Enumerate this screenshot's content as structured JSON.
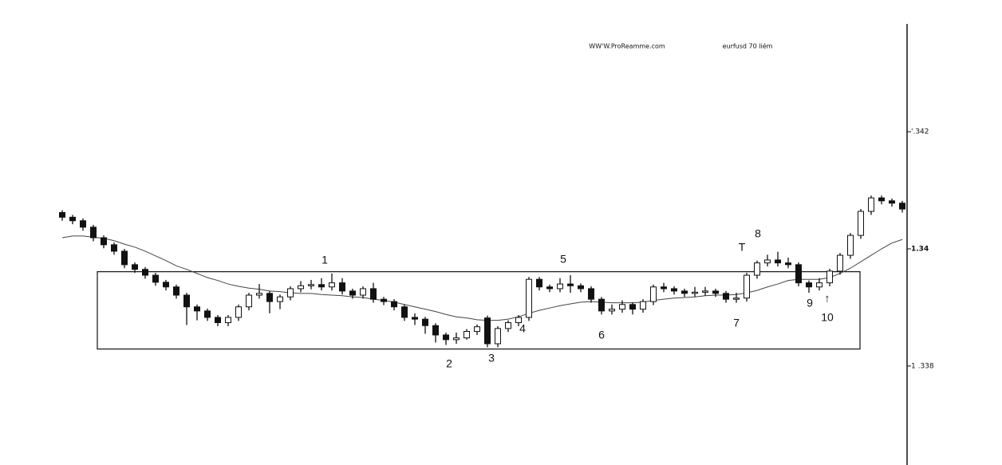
{
  "chart_data": {
    "type": "candlestick",
    "header": [
      "WW'W.ProReamme.com",
      "eurfusd 70 liém"
    ],
    "annotations": [
      "1",
      "2",
      "3",
      "4",
      "5",
      "6",
      "7",
      "T",
      "8",
      "9",
      "10",
      "↑"
    ],
    "ylim": [
      1.33631,
      1.34384
    ],
    "yticks": [
      {
        "value": 1.342,
        "label": "'.342"
      },
      1.34,
      {
        "value": 1.338,
        "label": "1 .338"
      }
    ],
    "range_box": [
      1.33829,
      1.33961
    ],
    "open": [
      1.34062,
      1.34054,
      1.34048,
      1.34037,
      1.34019,
      1.34007,
      1.33996,
      1.33973,
      1.33965,
      1.33955,
      1.33943,
      1.33935,
      1.33921,
      1.33901,
      1.33894,
      1.33883,
      1.33874,
      1.33883,
      1.33901,
      1.33921,
      1.33924,
      1.3391,
      1.33918,
      1.33932,
      1.33937,
      1.33939,
      1.33935,
      1.33942,
      1.33928,
      1.33921,
      1.33932,
      1.33914,
      1.3391,
      1.33901,
      1.33883,
      1.3388,
      1.33869,
      1.33853,
      1.33845,
      1.33848,
      1.33859,
      1.33882,
      1.33838,
      1.33864,
      1.33874,
      1.33883,
      1.33948,
      1.33935,
      1.33932,
      1.3394,
      1.33937,
      1.33932,
      1.33914,
      1.33894,
      1.33897,
      1.33905,
      1.33897,
      1.3391,
      1.33935,
      1.33932,
      1.33928,
      1.33924,
      1.33926,
      1.33928,
      1.33924,
      1.33914,
      1.33916,
      1.33955,
      1.33976,
      1.33981,
      1.33976,
      1.33973,
      1.33942,
      1.33935,
      1.33942,
      1.33962,
      1.33989,
      1.34023,
      1.34064,
      1.34087,
      1.34082,
      1.34078
    ],
    "high": [
      1.34066,
      1.34058,
      1.34052,
      1.34041,
      1.34023,
      1.34011,
      1.34,
      1.33977,
      1.33969,
      1.33959,
      1.33947,
      1.33939,
      1.33925,
      1.33905,
      1.33898,
      1.33887,
      1.33887,
      1.33905,
      1.33925,
      1.3394,
      1.33928,
      1.33922,
      1.33936,
      1.33945,
      1.33947,
      1.3395,
      1.33958,
      1.3395,
      1.33932,
      1.33936,
      1.33942,
      1.33918,
      1.33914,
      1.33905,
      1.3389,
      1.33884,
      1.33873,
      1.33857,
      1.33857,
      1.33863,
      1.33871,
      1.33886,
      1.33868,
      1.33878,
      1.33887,
      1.33952,
      1.33952,
      1.33939,
      1.3395,
      1.33955,
      1.33941,
      1.33936,
      1.33918,
      1.33905,
      1.33912,
      1.33909,
      1.33914,
      1.33939,
      1.33942,
      1.33936,
      1.33932,
      1.33935,
      1.33935,
      1.33932,
      1.33928,
      1.33925,
      1.33959,
      1.3398,
      1.3399,
      1.33995,
      1.33985,
      1.33977,
      1.33946,
      1.3395,
      1.33966,
      1.33993,
      1.34027,
      1.34068,
      1.34091,
      1.34091,
      1.34086,
      1.34082
    ],
    "low": [
      1.34048,
      1.34042,
      1.34031,
      1.34013,
      1.34001,
      1.3399,
      1.33967,
      1.33959,
      1.33949,
      1.33937,
      1.33929,
      1.33915,
      1.3387,
      1.33878,
      1.33877,
      1.33868,
      1.33868,
      1.33877,
      1.33895,
      1.33915,
      1.3389,
      1.33897,
      1.33912,
      1.33926,
      1.33931,
      1.33929,
      1.33929,
      1.33922,
      1.33915,
      1.33915,
      1.33908,
      1.33904,
      1.33895,
      1.33877,
      1.3387,
      1.33855,
      1.3384,
      1.33836,
      1.33838,
      1.33845,
      1.33853,
      1.33832,
      1.33832,
      1.33858,
      1.33868,
      1.33877,
      1.33929,
      1.33926,
      1.33926,
      1.33925,
      1.33926,
      1.33908,
      1.33888,
      1.33888,
      1.33891,
      1.33888,
      1.33891,
      1.33904,
      1.33926,
      1.33922,
      1.33918,
      1.33918,
      1.3392,
      1.33918,
      1.33908,
      1.33908,
      1.3391,
      1.33949,
      1.3397,
      1.3397,
      1.33967,
      1.33936,
      1.33925,
      1.33929,
      1.33936,
      1.33956,
      1.33983,
      1.34017,
      1.34058,
      1.34076,
      1.34072,
      1.34062
    ],
    "close": [
      1.34054,
      1.34048,
      1.34037,
      1.34019,
      1.34007,
      1.33996,
      1.33973,
      1.33965,
      1.33955,
      1.33943,
      1.33935,
      1.33921,
      1.33901,
      1.33894,
      1.33883,
      1.33874,
      1.33883,
      1.33901,
      1.33921,
      1.33924,
      1.3391,
      1.33918,
      1.33932,
      1.33937,
      1.33939,
      1.33935,
      1.33942,
      1.33928,
      1.33921,
      1.33932,
      1.33914,
      1.3391,
      1.33901,
      1.33883,
      1.3388,
      1.33869,
      1.33853,
      1.33845,
      1.33848,
      1.33859,
      1.33867,
      1.33838,
      1.33864,
      1.33874,
      1.33883,
      1.33948,
      1.33935,
      1.33932,
      1.3394,
      1.33937,
      1.33932,
      1.33914,
      1.33894,
      1.33897,
      1.33905,
      1.33897,
      1.3391,
      1.33935,
      1.33932,
      1.33928,
      1.33924,
      1.33926,
      1.33928,
      1.33924,
      1.33914,
      1.33916,
      1.33955,
      1.33976,
      1.33981,
      1.33976,
      1.33973,
      1.33942,
      1.33935,
      1.33942,
      1.33962,
      1.33989,
      1.34023,
      1.34064,
      1.34087,
      1.34082,
      1.34078,
      1.34068
    ],
    "moving_average": [
      1.34019,
      1.34022,
      1.34022,
      1.3402,
      1.34018,
      1.34014,
      1.34008,
      1.34003,
      1.33996,
      1.33988,
      1.3398,
      1.33971,
      1.33965,
      1.33958,
      1.33951,
      1.33946,
      1.3394,
      1.33936,
      1.33933,
      1.33931,
      1.33928,
      1.33927,
      1.33925,
      1.33924,
      1.33924,
      1.33922,
      1.33921,
      1.3392,
      1.33918,
      1.33917,
      1.33914,
      1.33912,
      1.33909,
      1.33905,
      1.33901,
      1.33897,
      1.33893,
      1.33888,
      1.33884,
      1.33882,
      1.33879,
      1.33878,
      1.33878,
      1.3388,
      1.33884,
      1.3389,
      1.33895,
      1.33899,
      1.33903,
      1.33906,
      1.33909,
      1.3391,
      1.33909,
      1.33908,
      1.33908,
      1.33908,
      1.33909,
      1.33912,
      1.33914,
      1.33916,
      1.33917,
      1.33918,
      1.3392,
      1.33921,
      1.33921,
      1.33922,
      1.33925,
      1.33929,
      1.33935,
      1.3394,
      1.33946,
      1.33948,
      1.33948,
      1.33948,
      1.33951,
      1.33958,
      1.33967,
      1.33978,
      1.33989,
      1.34,
      1.3401,
      1.34016
    ],
    "up_color": "#ffffff",
    "down_color": "#111111"
  }
}
